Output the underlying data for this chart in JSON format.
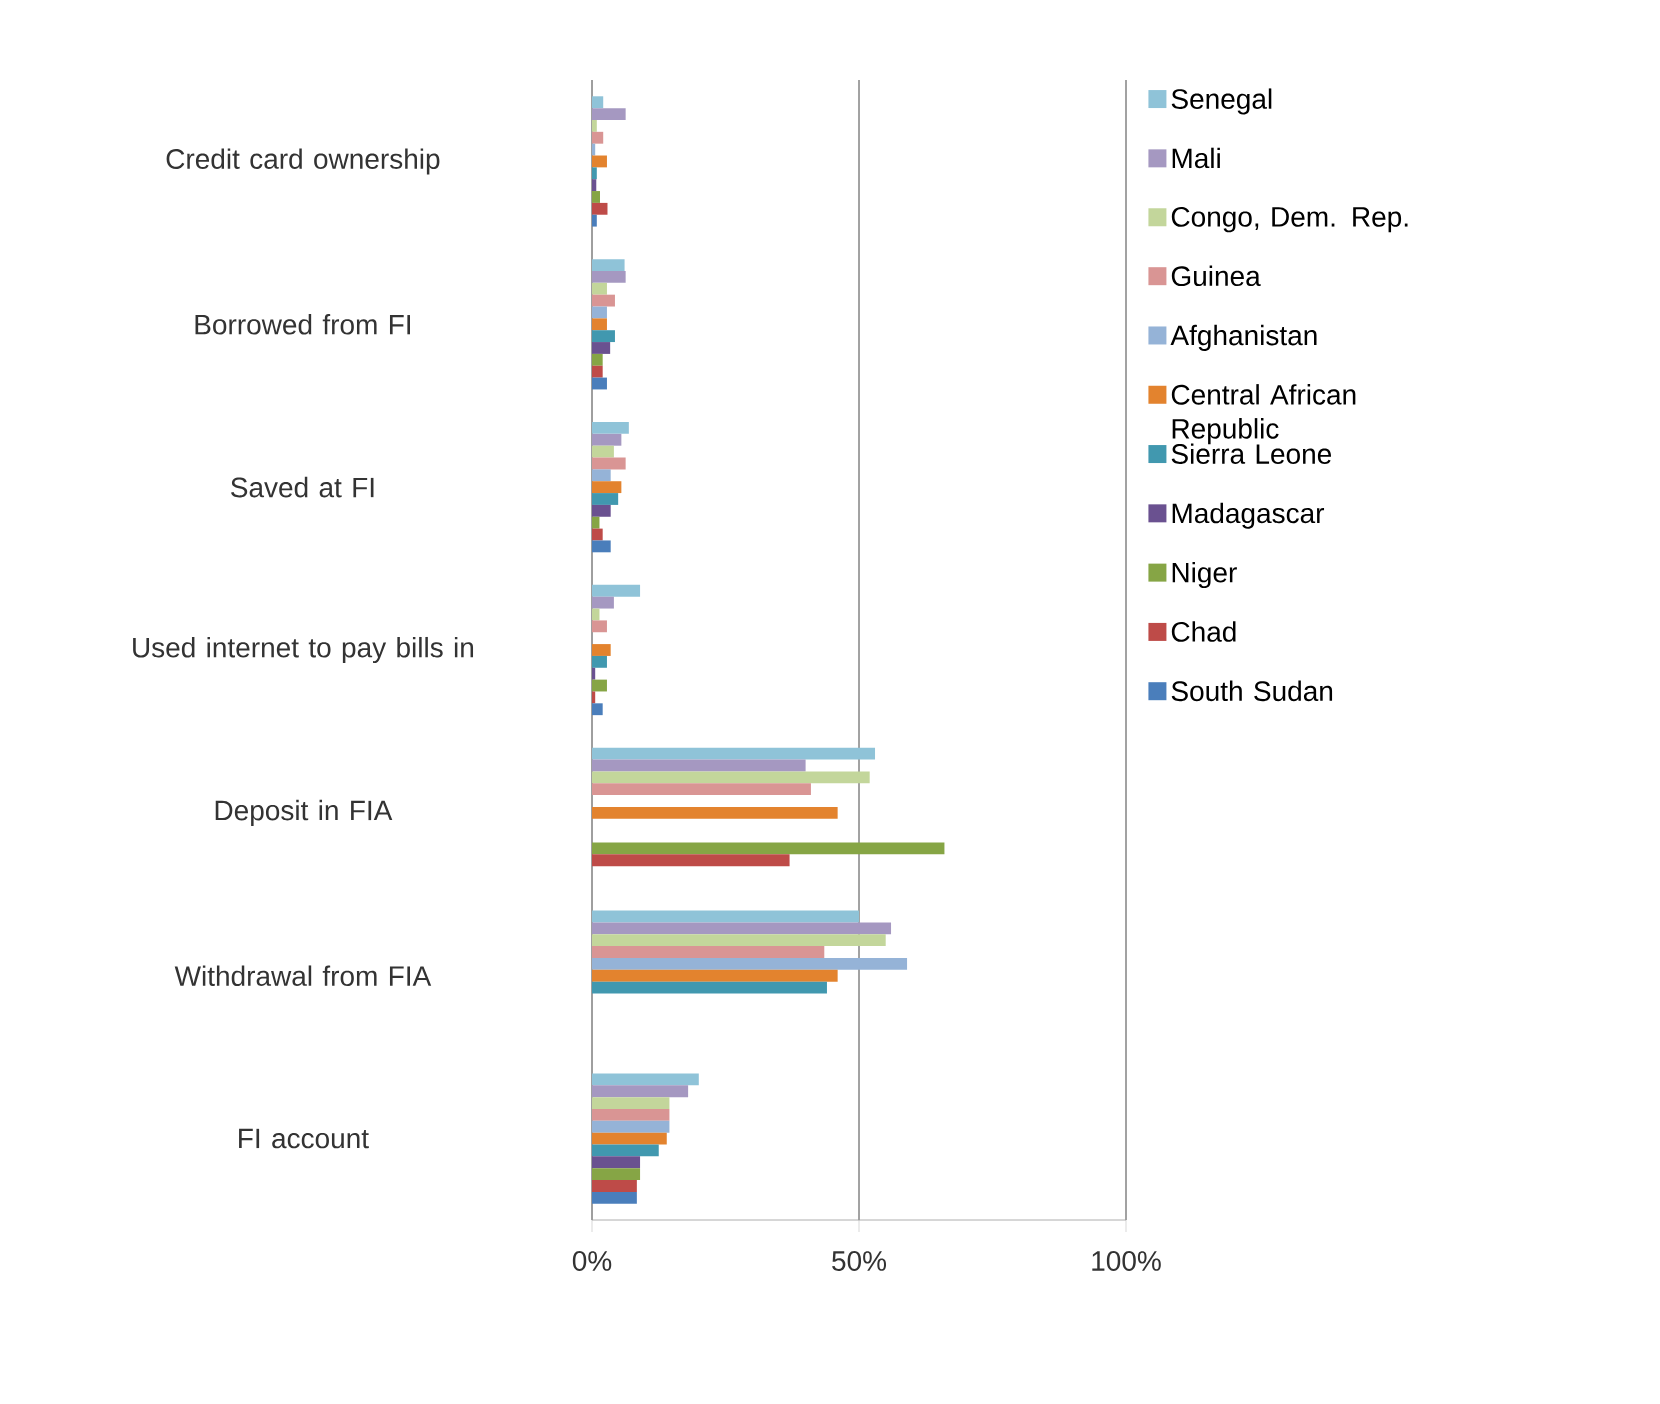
{
  "chart_data": {
    "type": "bar",
    "orientation": "horizontal",
    "categories": [
      "Credit card ownership",
      "Borrowed from FI",
      "Saved at FI",
      "Used internet to pay bills in",
      "Deposit in FIA",
      "Withdrawal from FIA",
      "FI account"
    ],
    "series": [
      {
        "name": "Senegal",
        "color": "#8fc3d8",
        "values": [
          2.1,
          6.1,
          6.9,
          9,
          53,
          50,
          20
        ]
      },
      {
        "name": "Mali",
        "color": "#a598c1",
        "values": [
          6.3,
          6.3,
          5.5,
          4.1,
          40,
          56,
          18
        ]
      },
      {
        "name": "Congo, Dem. Rep.",
        "color": "#c3d69b",
        "values": [
          0.9,
          2.8,
          4.1,
          1.4,
          52,
          55,
          14.5
        ]
      },
      {
        "name": "Guinea",
        "color": "#d99594",
        "values": [
          2.1,
          4.3,
          6.3,
          2.8,
          41,
          43.5,
          14.5
        ]
      },
      {
        "name": "Afghanistan",
        "color": "#95b3d7",
        "values": [
          0.6,
          2.8,
          3.5,
          null,
          null,
          59,
          14.5
        ]
      },
      {
        "name": "Central African Republic",
        "color": "#e3832e",
        "values": [
          2.8,
          2.8,
          5.5,
          3.5,
          46,
          46,
          14
        ]
      },
      {
        "name": "Sierra Leone",
        "color": "#4198af",
        "values": [
          0.9,
          4.3,
          4.9,
          2.8,
          null,
          44,
          12.5
        ]
      },
      {
        "name": "Madagascar",
        "color": "#6a5190",
        "values": [
          0.8,
          3.4,
          3.5,
          0.6,
          null,
          null,
          9
        ]
      },
      {
        "name": "Niger",
        "color": "#86a545",
        "values": [
          1.5,
          2,
          1.4,
          2.8,
          66,
          null,
          9
        ]
      },
      {
        "name": "Chad",
        "color": "#be4b48",
        "values": [
          2.9,
          2,
          2,
          0.6,
          37,
          null,
          8.4
        ]
      },
      {
        "name": "South Sudan",
        "color": "#4a7ebb",
        "values": [
          0.9,
          2.8,
          3.5,
          2,
          null,
          null,
          8.4
        ]
      }
    ],
    "xlim": [
      0,
      100
    ],
    "xticks": [
      {
        "value": 0,
        "label": "0%"
      },
      {
        "value": 50,
        "label": "50%"
      },
      {
        "value": 100,
        "label": "100%"
      }
    ],
    "grid": "x",
    "legend": "right"
  }
}
